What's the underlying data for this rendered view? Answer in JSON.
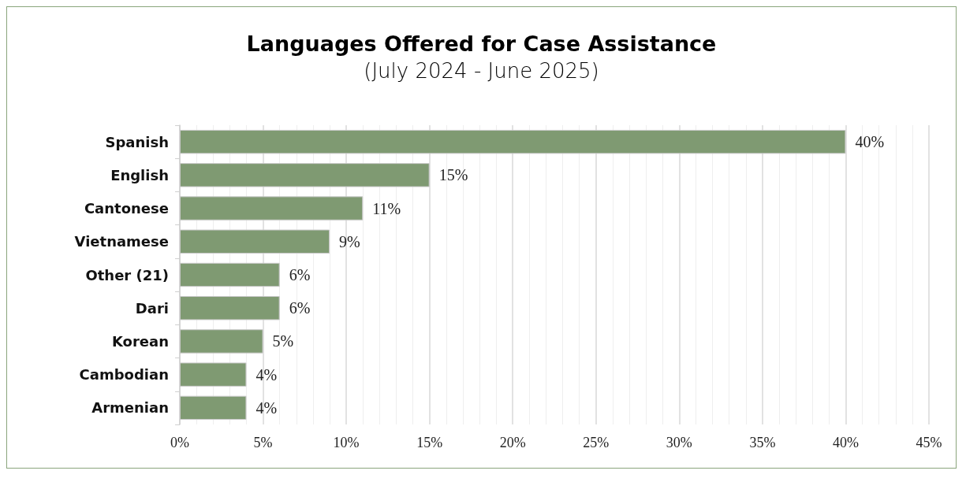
{
  "chart_data": {
    "type": "bar",
    "orientation": "horizontal",
    "title": "Languages Offered for Case Assistance",
    "subtitle": "(July 2024 - June 2025)",
    "categories": [
      "Spanish",
      "English",
      "Cantonese",
      "Vietnamese",
      "Other (21)",
      "Dari",
      "Korean",
      "Cambodian",
      "Armenian"
    ],
    "values": [
      40,
      15,
      11,
      9,
      6,
      6,
      5,
      4,
      4
    ],
    "value_labels": [
      "40%",
      "15%",
      "11%",
      "9%",
      "6%",
      "6%",
      "5%",
      "4%",
      "4%"
    ],
    "color": "#7f9a72",
    "xlim": [
      0,
      45
    ],
    "xticks": [
      {
        "value": 0,
        "label": "0%"
      },
      {
        "value": 5,
        "label": "5%"
      },
      {
        "value": 10,
        "label": "10%"
      },
      {
        "value": 15,
        "label": "15%"
      },
      {
        "value": 20,
        "label": "20%"
      },
      {
        "value": 25,
        "label": "25%"
      },
      {
        "value": 30,
        "label": "30%"
      },
      {
        "value": 35,
        "label": "35%"
      },
      {
        "value": 40,
        "label": "40%"
      },
      {
        "value": 45,
        "label": "45%"
      }
    ],
    "grid": "x"
  }
}
